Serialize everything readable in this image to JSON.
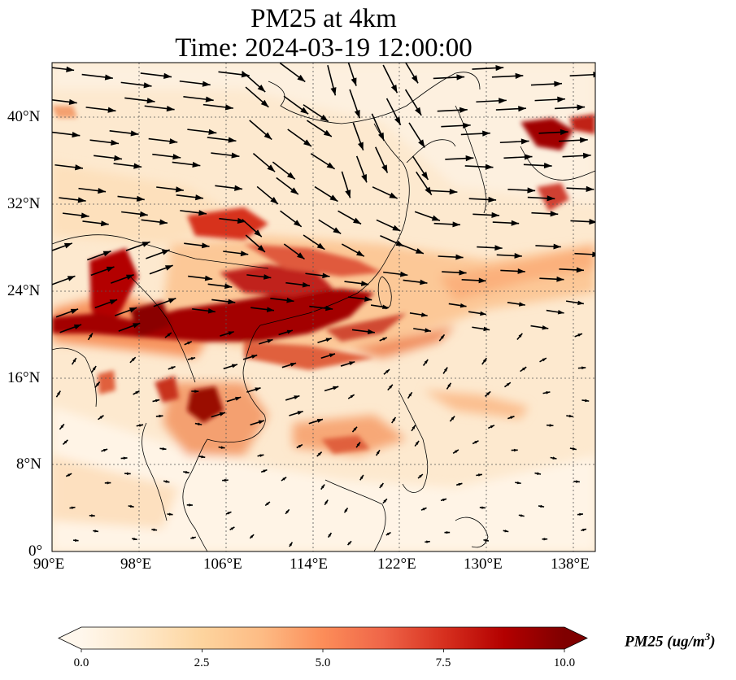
{
  "title": {
    "line1": "PM25 at 4km",
    "line2": "Time: 2024-03-19 12:00:00"
  },
  "map": {
    "extent_lon": [
      90,
      140
    ],
    "extent_lat": [
      0,
      45
    ],
    "x_ticks": [
      "90°E",
      "98°E",
      "106°E",
      "114°E",
      "122°E",
      "130°E",
      "138°E"
    ],
    "y_ticks": [
      "0°",
      "8°N",
      "16°N",
      "24°N",
      "32°N",
      "40°N"
    ],
    "grid": "dotted",
    "wind_vectors": "black arrows"
  },
  "colorbar": {
    "label": "PM25 (ug/m^3)",
    "label_display": "PM25 (ug/m",
    "label_sup": "3",
    "label_tail": ")",
    "ticks": [
      "0.0",
      "2.5",
      "5.0",
      "7.5",
      "10.0"
    ],
    "range": [
      0,
      10
    ],
    "extend": "both",
    "colormap": "OrRd",
    "colors": [
      "#fff7ec",
      "#fee8c8",
      "#fdd49e",
      "#fdbb84",
      "#fc8d59",
      "#ef6548",
      "#d7301f",
      "#b30000",
      "#7f0000"
    ]
  }
}
